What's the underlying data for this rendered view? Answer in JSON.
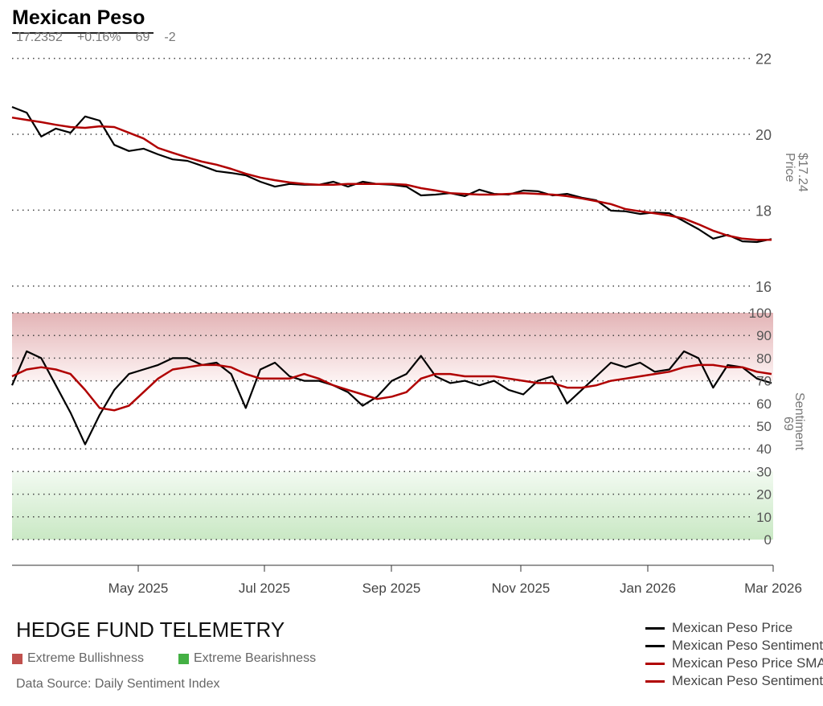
{
  "header": {
    "title": "Mexican Peso",
    "last_price": "17.2352",
    "change_pct": "+0.16%",
    "sentiment": "69",
    "sentiment_change": "-2"
  },
  "footer": {
    "brand": "HEDGE FUND TELEMETRY",
    "extreme_bull": "Extreme Bullishness",
    "extreme_bear": "Extreme Bearishness",
    "source": "Data Source: Daily Sentiment Index"
  },
  "legend": [
    {
      "label": "Mexican Peso Price",
      "color": "#000000"
    },
    {
      "label": "Mexican Peso Sentiment",
      "color": "#000000"
    },
    {
      "label": "Mexican Peso Price SMA",
      "color": "#b00000"
    },
    {
      "label": "Mexican Peso Sentiment SMA",
      "color": "#b00000"
    }
  ],
  "colors": {
    "bull": "#c0504d",
    "bear": "#4caf50",
    "sma": "#b00000",
    "line": "#000000"
  },
  "chart_data": {
    "type": "line",
    "x_start": "2025-03-02",
    "step_days": 7,
    "x_ticks": [
      "May 2025",
      "Jul 2025",
      "Sep 2025",
      "Nov 2025",
      "Jan 2026",
      "Mar 2026"
    ],
    "price_axis": {
      "label": "Price",
      "current": "$17.24",
      "ylim": [
        16,
        22
      ],
      "ticks": [
        "16",
        "18",
        "20",
        "22"
      ]
    },
    "sentiment_axis": {
      "label": "Sentiment",
      "current": "69",
      "ylim": [
        0,
        100
      ],
      "ticks": [
        "0",
        "10",
        "20",
        "30",
        "40",
        "50",
        "60",
        "70",
        "80",
        "90",
        "100"
      ]
    },
    "series": [
      {
        "name": "Mexican Peso Price",
        "panel": "price",
        "values": [
          20.72,
          20.57,
          19.94,
          20.15,
          20.04,
          20.47,
          20.36,
          19.72,
          19.56,
          19.62,
          19.47,
          19.34,
          19.3,
          19.17,
          19.03,
          18.98,
          18.92,
          18.75,
          18.62,
          18.69,
          18.67,
          18.67,
          18.75,
          18.62,
          18.75,
          18.69,
          18.67,
          18.62,
          18.39,
          18.41,
          18.45,
          18.37,
          18.54,
          18.43,
          18.41,
          18.52,
          18.5,
          18.39,
          18.43,
          18.33,
          18.26,
          17.99,
          17.97,
          17.9,
          17.94,
          17.92,
          17.71,
          17.5,
          17.25,
          17.35,
          17.18,
          17.16,
          17.24
        ]
      },
      {
        "name": "Mexican Peso Price SMA",
        "panel": "price",
        "values": [
          20.44,
          20.38,
          20.32,
          20.25,
          20.19,
          20.17,
          20.21,
          20.19,
          20.04,
          19.89,
          19.64,
          19.51,
          19.39,
          19.28,
          19.2,
          19.09,
          18.96,
          18.86,
          18.79,
          18.73,
          18.69,
          18.67,
          18.67,
          18.69,
          18.69,
          18.69,
          18.69,
          18.67,
          18.58,
          18.52,
          18.45,
          18.43,
          18.41,
          18.41,
          18.43,
          18.45,
          18.43,
          18.41,
          18.37,
          18.31,
          18.24,
          18.16,
          18.03,
          17.97,
          17.92,
          17.86,
          17.78,
          17.63,
          17.46,
          17.33,
          17.25,
          17.22,
          17.22
        ]
      },
      {
        "name": "Mexican Peso Sentiment",
        "panel": "sentiment",
        "values": [
          68,
          83,
          80,
          68,
          56,
          42,
          55,
          66,
          73,
          75,
          77,
          80,
          80,
          77,
          78,
          73,
          58,
          75,
          78,
          72,
          70,
          70,
          68,
          65,
          59,
          63,
          70,
          73,
          81,
          72,
          69,
          70,
          68,
          70,
          66,
          64,
          70,
          72,
          60,
          66,
          72,
          78,
          76,
          78,
          74,
          75,
          83,
          80,
          67,
          77,
          76,
          71,
          69
        ]
      },
      {
        "name": "Mexican Peso Sentiment SMA",
        "panel": "sentiment",
        "values": [
          72,
          75,
          76,
          75,
          73,
          66,
          58,
          57,
          59,
          65,
          71,
          75,
          76,
          77,
          77,
          76,
          73,
          71,
          71,
          71,
          73,
          71,
          68,
          66,
          64,
          62,
          63,
          65,
          71,
          73,
          73,
          72,
          72,
          72,
          71,
          70,
          69,
          69,
          67,
          67,
          68,
          70,
          71,
          72,
          73,
          74,
          76,
          77,
          77,
          76,
          76,
          74,
          73
        ]
      }
    ],
    "bands": [
      {
        "name": "Extreme Bullishness",
        "range": [
          70,
          100
        ]
      },
      {
        "name": "Extreme Bearishness",
        "range": [
          0,
          30
        ]
      }
    ],
    "grid": true
  }
}
